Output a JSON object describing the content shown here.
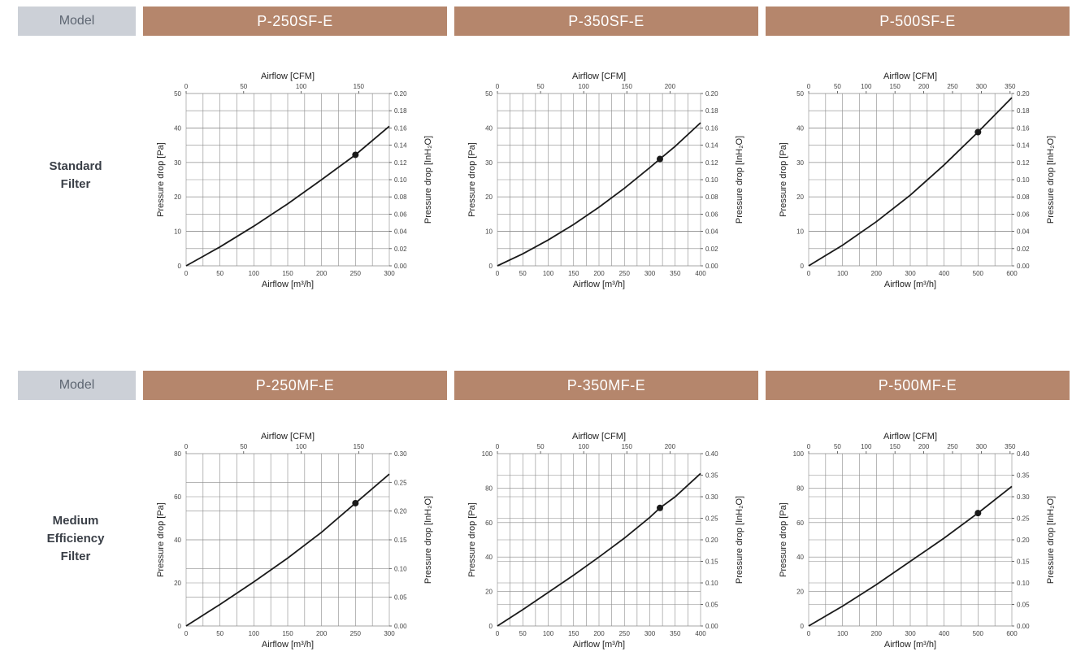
{
  "rows": [
    {
      "model_label": "Model",
      "label_lines": [
        "Standard",
        "Filter"
      ],
      "products": [
        "P-250SF-E",
        "P-350SF-E",
        "P-500SF-E"
      ]
    },
    {
      "model_label": "Model",
      "label_lines": [
        "Medium",
        "Efficiency",
        "Filter"
      ],
      "products": [
        "P-250MF-E",
        "P-350MF-E",
        "P-500MF-E"
      ]
    }
  ],
  "colors": {
    "header_model_bg": "#ccd0d7",
    "header_product_bg": "#b5866c",
    "curve": "#1a1a1a"
  },
  "chart_data": [
    {
      "type": "line",
      "model": "P-250SF-E",
      "xlabel": "Airflow [m³/h]",
      "x2label": "Airflow [CFM]",
      "ylabel": "Pressure drop [Pa]",
      "y2label": "Pressure drop [InH₂O]",
      "xlim": [
        0,
        300
      ],
      "xticks": [
        0,
        50,
        100,
        150,
        200,
        250,
        300
      ],
      "ylim": [
        0,
        50
      ],
      "yticks": [
        0,
        10,
        20,
        30,
        40,
        50
      ],
      "x2lim": [
        0,
        176.6
      ],
      "x2ticks": [
        0,
        50,
        100,
        150
      ],
      "y2lim": [
        0,
        0.2
      ],
      "y2ticks": [
        "0.00",
        "0.02",
        "0.04",
        "0.06",
        "0.08",
        "0.10",
        "0.12",
        "0.14",
        "0.16",
        "0.18",
        "0.20"
      ],
      "grid": true,
      "series": [
        {
          "x": [
            0,
            50,
            100,
            150,
            200,
            250,
            300
          ],
          "y": [
            0,
            5.5,
            11.5,
            18,
            25,
            32.2,
            40.5
          ]
        }
      ],
      "marker": {
        "x": 250,
        "y": 32.2
      }
    },
    {
      "type": "line",
      "model": "P-350SF-E",
      "xlabel": "Airflow [m³/h]",
      "x2label": "Airflow [CFM]",
      "ylabel": "Pressure drop [Pa]",
      "y2label": "Pressure drop [InH₂O]",
      "xlim": [
        0,
        400
      ],
      "xticks": [
        0,
        50,
        100,
        150,
        200,
        250,
        300,
        350,
        400
      ],
      "ylim": [
        0,
        50
      ],
      "yticks": [
        0,
        10,
        20,
        30,
        40,
        50
      ],
      "x2lim": [
        0,
        235.4
      ],
      "x2ticks": [
        0,
        50,
        100,
        150,
        200
      ],
      "y2lim": [
        0,
        0.2
      ],
      "y2ticks": [
        "0.00",
        "0.02",
        "0.04",
        "0.06",
        "0.08",
        "0.10",
        "0.12",
        "0.14",
        "0.16",
        "0.18",
        "0.20"
      ],
      "grid": true,
      "series": [
        {
          "x": [
            0,
            50,
            100,
            150,
            200,
            250,
            300,
            320,
            350,
            400
          ],
          "y": [
            0,
            3.5,
            7.5,
            12,
            17,
            22.5,
            28.5,
            31,
            34.7,
            41.5
          ]
        }
      ],
      "marker": {
        "x": 320,
        "y": 31
      }
    },
    {
      "type": "line",
      "model": "P-500SF-E",
      "xlabel": "Airflow [m³/h]",
      "x2label": "Airflow [CFM]",
      "ylabel": "Pressure drop [Pa]",
      "y2label": "Pressure drop [InH₂O]",
      "xlim": [
        0,
        600
      ],
      "xticks": [
        0,
        100,
        200,
        300,
        400,
        500,
        600
      ],
      "ylim": [
        0,
        50
      ],
      "yticks": [
        0,
        10,
        20,
        30,
        40,
        50
      ],
      "x2lim": [
        0,
        353.1
      ],
      "x2ticks": [
        0,
        50,
        100,
        150,
        200,
        250,
        300,
        350
      ],
      "y2lim": [
        0,
        0.2
      ],
      "y2ticks": [
        "0.00",
        "0.02",
        "0.04",
        "0.06",
        "0.08",
        "0.10",
        "0.12",
        "0.14",
        "0.16",
        "0.18",
        "0.20"
      ],
      "grid": true,
      "series": [
        {
          "x": [
            0,
            100,
            200,
            300,
            400,
            500,
            600
          ],
          "y": [
            0,
            6,
            12.8,
            20.5,
            29.3,
            38.8,
            48.8
          ]
        }
      ],
      "marker": {
        "x": 500,
        "y": 38.8
      }
    },
    {
      "type": "line",
      "model": "P-250MF-E",
      "xlabel": "Airflow [m³/h]",
      "x2label": "Airflow [CFM]",
      "ylabel": "Pressure drop [Pa]",
      "y2label": "Pressure drop [InH₂O]",
      "xlim": [
        0,
        300
      ],
      "xticks": [
        0,
        50,
        100,
        150,
        200,
        250,
        300
      ],
      "ylim": [
        0,
        80
      ],
      "yticks": [
        0,
        20,
        40,
        60,
        80
      ],
      "x2lim": [
        0,
        176.6
      ],
      "x2ticks": [
        0,
        50,
        100,
        150
      ],
      "y2lim": [
        0,
        0.3
      ],
      "y2ticks": [
        "0.00",
        "0.05",
        "0.10",
        "0.15",
        "0.20",
        "0.25",
        "0.30"
      ],
      "grid": true,
      "series": [
        {
          "x": [
            0,
            50,
            100,
            150,
            200,
            250,
            300
          ],
          "y": [
            0,
            10,
            20.5,
            31.5,
            43.5,
            57,
            70.5
          ]
        }
      ],
      "marker": {
        "x": 250,
        "y": 57
      }
    },
    {
      "type": "line",
      "model": "P-350MF-E",
      "xlabel": "Airflow [m³/h]",
      "x2label": "Airflow [CFM]",
      "ylabel": "Pressure drop [Pa]",
      "y2label": "Pressure drop [InH₂O]",
      "xlim": [
        0,
        400
      ],
      "xticks": [
        0,
        50,
        100,
        150,
        200,
        250,
        300,
        350,
        400
      ],
      "ylim": [
        0,
        100
      ],
      "yticks": [
        0,
        20,
        40,
        60,
        80,
        100
      ],
      "x2lim": [
        0,
        235.4
      ],
      "x2ticks": [
        0,
        50,
        100,
        150,
        200
      ],
      "y2lim": [
        0,
        0.4
      ],
      "y2ticks": [
        "0.00",
        "0.05",
        "0.10",
        "0.15",
        "0.20",
        "0.25",
        "0.30",
        "0.35",
        "0.40"
      ],
      "grid": true,
      "series": [
        {
          "x": [
            0,
            50,
            100,
            150,
            200,
            250,
            300,
            320,
            350,
            400
          ],
          "y": [
            0,
            9.5,
            19.5,
            29.5,
            40,
            51,
            63,
            68.5,
            75,
            88.5
          ]
        }
      ],
      "marker": {
        "x": 320,
        "y": 68.5
      }
    },
    {
      "type": "line",
      "model": "P-500MF-E",
      "xlabel": "Airflow [m³/h]",
      "x2label": "Airflow [CFM]",
      "ylabel": "Pressure drop [Pa]",
      "y2label": "Pressure drop [InH₂O]",
      "xlim": [
        0,
        600
      ],
      "xticks": [
        0,
        100,
        200,
        300,
        400,
        500,
        600
      ],
      "ylim": [
        0,
        100
      ],
      "yticks": [
        0,
        20,
        40,
        60,
        80,
        100
      ],
      "x2lim": [
        0,
        353.1
      ],
      "x2ticks": [
        0,
        50,
        100,
        150,
        200,
        250,
        300,
        350
      ],
      "y2lim": [
        0,
        0.4
      ],
      "y2ticks": [
        "0.00",
        "0.05",
        "0.10",
        "0.15",
        "0.20",
        "0.25",
        "0.30",
        "0.35",
        "0.40"
      ],
      "grid": true,
      "series": [
        {
          "x": [
            0,
            100,
            200,
            300,
            400,
            500,
            600
          ],
          "y": [
            0,
            11.5,
            24,
            37.5,
            51,
            65.5,
            81
          ]
        }
      ],
      "marker": {
        "x": 500,
        "y": 65.5
      }
    }
  ]
}
